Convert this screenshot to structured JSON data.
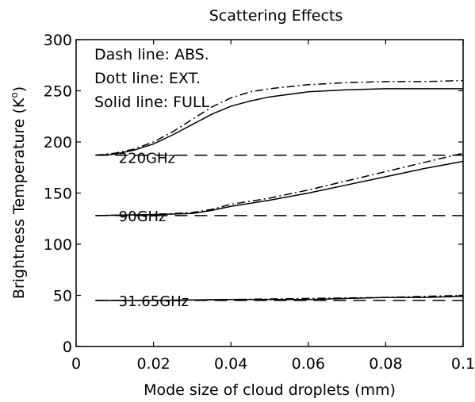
{
  "chart_data": {
    "type": "line",
    "title": "Scattering Effects",
    "xlabel": "Mode size of cloud droplets (mm)",
    "ylabel": "Brightness Temperature  (K",
    "ylabel_sup": "o",
    "ylabel_close": ")",
    "xlim": [
      0,
      0.1
    ],
    "ylim": [
      0,
      300
    ],
    "xticks": [
      0,
      0.02,
      0.04,
      0.06,
      0.08,
      0.1
    ],
    "xtick_labels": [
      "0",
      "0.02",
      "0.04",
      "0.06",
      "0.08",
      "0.1"
    ],
    "yticks": [
      0,
      50,
      100,
      150,
      200,
      250,
      300
    ],
    "ytick_labels": [
      "0",
      "50",
      "100",
      "150",
      "200",
      "250",
      "300"
    ],
    "grid": false,
    "legend_notes": [
      "Dash line: ABS.",
      "Dott line: EXT.",
      "Solid line: FULL"
    ],
    "groups": [
      {
        "label": "220GHz",
        "label_at": [
          0.011,
          185
        ],
        "abs": {
          "x": [
            0.005,
            0.1
          ],
          "y": [
            187,
            187
          ]
        },
        "ext": {
          "x": [
            0.005,
            0.01,
            0.015,
            0.02,
            0.025,
            0.03,
            0.035,
            0.04,
            0.045,
            0.05,
            0.06,
            0.07,
            0.08,
            0.09,
            0.1
          ],
          "y": [
            187,
            189,
            193,
            200,
            210,
            222,
            234,
            243,
            249,
            252,
            256,
            258,
            259,
            259,
            260
          ]
        },
        "full": {
          "x": [
            0.005,
            0.01,
            0.015,
            0.02,
            0.025,
            0.03,
            0.035,
            0.04,
            0.045,
            0.05,
            0.06,
            0.07,
            0.08,
            0.09,
            0.1
          ],
          "y": [
            187,
            188,
            192,
            198,
            207,
            217,
            227,
            235,
            240,
            244,
            249,
            251,
            252,
            252,
            252
          ]
        }
      },
      {
        "label": "90GHz",
        "label_at": [
          0.011,
          128
        ],
        "abs": {
          "x": [
            0.005,
            0.1
          ],
          "y": [
            128,
            128
          ]
        },
        "ext": {
          "x": [
            0.005,
            0.02,
            0.03,
            0.035,
            0.04,
            0.05,
            0.06,
            0.07,
            0.08,
            0.09,
            0.1
          ],
          "y": [
            128,
            129,
            131,
            134,
            139,
            145,
            153,
            162,
            171,
            180,
            189
          ]
        },
        "full": {
          "x": [
            0.005,
            0.02,
            0.03,
            0.035,
            0.04,
            0.05,
            0.06,
            0.07,
            0.08,
            0.09,
            0.1
          ],
          "y": [
            128,
            129,
            130,
            133,
            137,
            143,
            150,
            158,
            166,
            174,
            181
          ]
        }
      },
      {
        "label": "31.65GHz",
        "label_at": [
          0.011,
          45
        ],
        "abs": {
          "x": [
            0.005,
            0.1
          ],
          "y": [
            45,
            45
          ]
        },
        "ext": {
          "x": [
            0.005,
            0.02,
            0.04,
            0.06,
            0.08,
            0.09,
            0.1
          ],
          "y": [
            45,
            45,
            46,
            47,
            48,
            49,
            50
          ]
        },
        "full": {
          "x": [
            0.005,
            0.02,
            0.04,
            0.06,
            0.08,
            0.09,
            0.1
          ],
          "y": [
            45,
            45,
            46,
            46,
            48,
            48,
            49
          ]
        }
      }
    ]
  }
}
